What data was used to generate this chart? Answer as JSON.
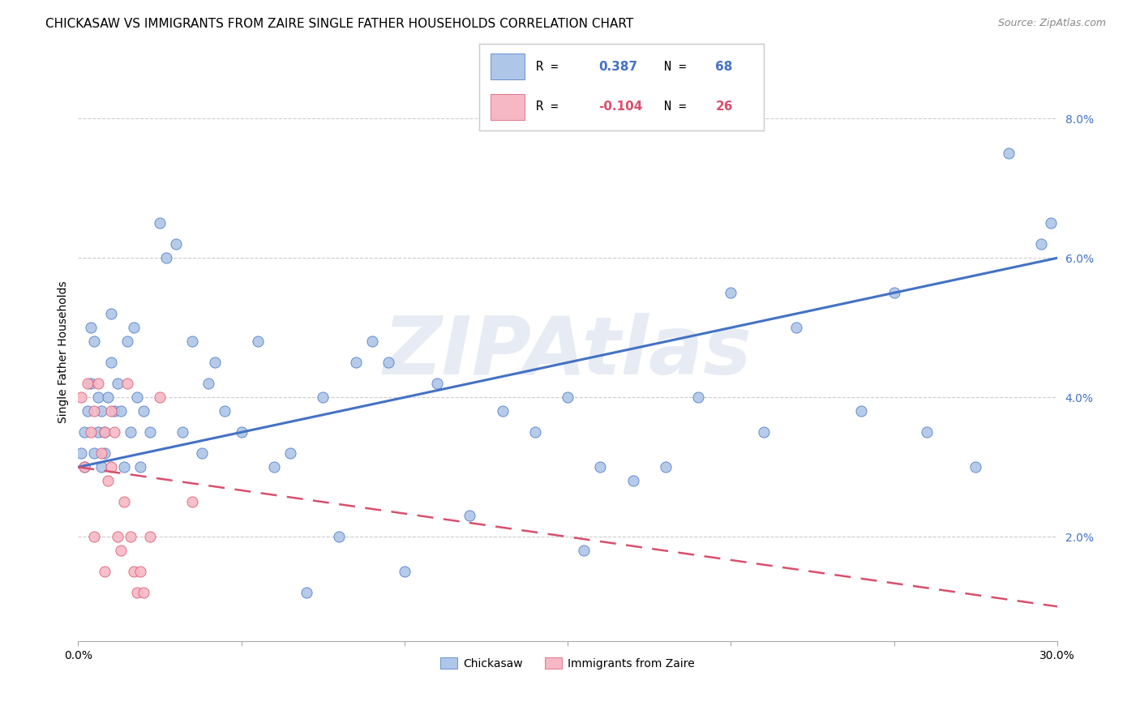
{
  "title": "CHICKASAW VS IMMIGRANTS FROM ZAIRE SINGLE FATHER HOUSEHOLDS CORRELATION CHART",
  "source": "Source: ZipAtlas.com",
  "ylabel": "Single Father Households",
  "xmin": 0.0,
  "xmax": 0.3,
  "ymin": 0.005,
  "ymax": 0.088,
  "yticks": [
    0.02,
    0.04,
    0.06,
    0.08
  ],
  "ytick_labels": [
    "2.0%",
    "4.0%",
    "6.0%",
    "8.0%"
  ],
  "xticks": [
    0.0,
    0.05,
    0.1,
    0.15,
    0.2,
    0.25,
    0.3
  ],
  "xtick_labels": [
    "0.0%",
    "",
    "",
    "",
    "",
    "",
    "30.0%"
  ],
  "chickasaw_color": "#aec6e8",
  "zaire_color": "#f5b8c4",
  "trend1_color": "#4472c4",
  "trend2_color": "#d94f6e",
  "watermark": "ZIPAtlas",
  "chickasaw_x": [
    0.001,
    0.002,
    0.002,
    0.003,
    0.004,
    0.004,
    0.005,
    0.005,
    0.006,
    0.006,
    0.007,
    0.007,
    0.008,
    0.008,
    0.009,
    0.01,
    0.01,
    0.011,
    0.012,
    0.013,
    0.014,
    0.015,
    0.016,
    0.017,
    0.018,
    0.019,
    0.02,
    0.022,
    0.025,
    0.027,
    0.03,
    0.032,
    0.035,
    0.038,
    0.04,
    0.042,
    0.045,
    0.05,
    0.055,
    0.06,
    0.065,
    0.07,
    0.075,
    0.08,
    0.085,
    0.09,
    0.095,
    0.1,
    0.11,
    0.12,
    0.13,
    0.14,
    0.15,
    0.155,
    0.16,
    0.17,
    0.18,
    0.19,
    0.2,
    0.21,
    0.22,
    0.24,
    0.25,
    0.26,
    0.275,
    0.285,
    0.295,
    0.298
  ],
  "chickasaw_y": [
    0.032,
    0.03,
    0.035,
    0.038,
    0.042,
    0.05,
    0.032,
    0.048,
    0.035,
    0.04,
    0.03,
    0.038,
    0.035,
    0.032,
    0.04,
    0.045,
    0.052,
    0.038,
    0.042,
    0.038,
    0.03,
    0.048,
    0.035,
    0.05,
    0.04,
    0.03,
    0.038,
    0.035,
    0.065,
    0.06,
    0.062,
    0.035,
    0.048,
    0.032,
    0.042,
    0.045,
    0.038,
    0.035,
    0.048,
    0.03,
    0.032,
    0.012,
    0.04,
    0.02,
    0.045,
    0.048,
    0.045,
    0.015,
    0.042,
    0.023,
    0.038,
    0.035,
    0.04,
    0.018,
    0.03,
    0.028,
    0.03,
    0.04,
    0.055,
    0.035,
    0.05,
    0.038,
    0.055,
    0.035,
    0.03,
    0.075,
    0.062,
    0.065
  ],
  "zaire_x": [
    0.001,
    0.002,
    0.003,
    0.004,
    0.005,
    0.005,
    0.006,
    0.007,
    0.008,
    0.008,
    0.009,
    0.01,
    0.01,
    0.011,
    0.012,
    0.013,
    0.014,
    0.015,
    0.016,
    0.017,
    0.018,
    0.019,
    0.02,
    0.022,
    0.025,
    0.035
  ],
  "zaire_y": [
    0.04,
    0.03,
    0.042,
    0.035,
    0.038,
    0.02,
    0.042,
    0.032,
    0.035,
    0.015,
    0.028,
    0.03,
    0.038,
    0.035,
    0.02,
    0.018,
    0.025,
    0.042,
    0.02,
    0.015,
    0.012,
    0.015,
    0.012,
    0.02,
    0.04,
    0.025
  ],
  "trend1_x0": 0.0,
  "trend1_y0": 0.03,
  "trend1_x1": 0.3,
  "trend1_y1": 0.06,
  "trend2_x0": 0.0,
  "trend2_y0": 0.03,
  "trend2_x1": 0.3,
  "trend2_y1": 0.01
}
